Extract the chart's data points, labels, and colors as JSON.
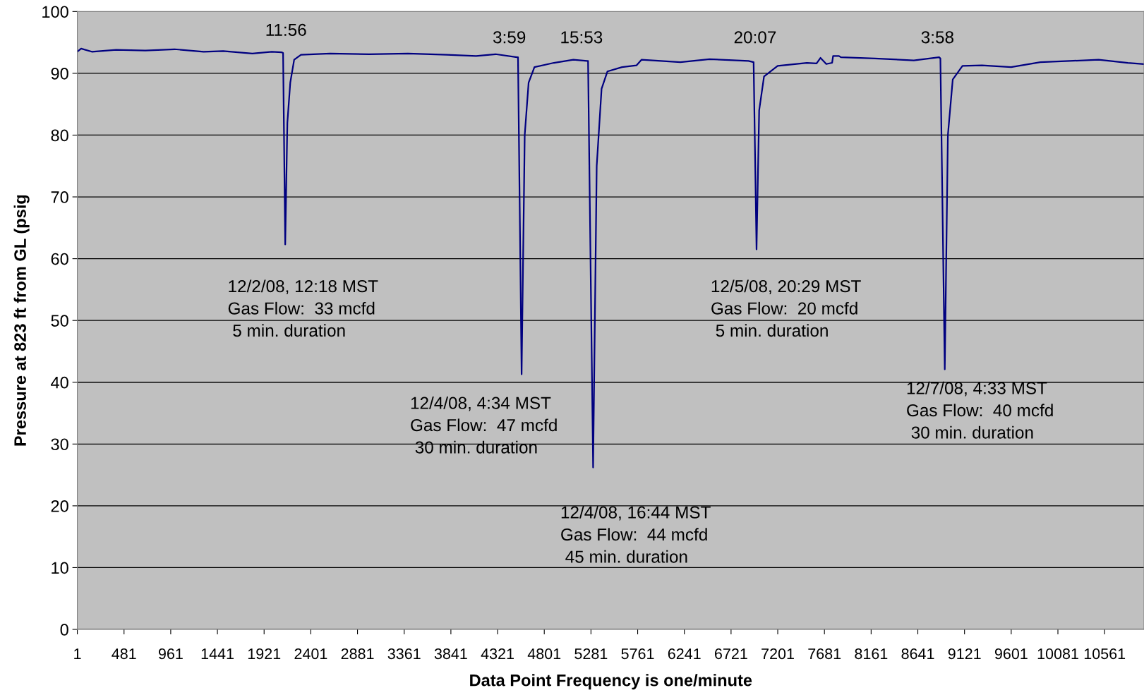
{
  "chart_data": {
    "type": "line",
    "xlabel": "Data Point Frequency is one/minute",
    "ylabel": "Pressure at 823 ft from GL (psig",
    "series": [
      {
        "color": "#000080",
        "x": [
          1,
          40,
          150,
          400,
          700,
          1000,
          1300,
          1500,
          1800,
          2000,
          2100,
          2116,
          2138,
          2160,
          2190,
          2230,
          2300,
          2600,
          3000,
          3400,
          3800,
          4100,
          4300,
          4520,
          4531,
          4568,
          4600,
          4640,
          4700,
          4900,
          5100,
          5240,
          5251,
          5303,
          5340,
          5390,
          5450,
          5600,
          5750,
          5800,
          6200,
          6500,
          6900,
          6953,
          6983,
          7010,
          7060,
          7200,
          7500,
          7600,
          7640,
          7700,
          7760,
          7770,
          7830,
          7850,
          8200,
          8600,
          8860,
          8873,
          8918,
          8950,
          9000,
          9100,
          9300,
          9600,
          9900,
          10200,
          10500,
          10800,
          10960
        ],
        "values": [
          93.5,
          94.0,
          93.5,
          93.8,
          93.7,
          93.9,
          93.5,
          93.6,
          93.2,
          93.5,
          93.4,
          93.3,
          62.3,
          82,
          88.5,
          92.2,
          93.0,
          93.2,
          93.1,
          93.2,
          93.0,
          92.8,
          93.1,
          92.6,
          92.6,
          41.3,
          80,
          88.5,
          91.0,
          91.7,
          92.2,
          92.0,
          92.0,
          26.2,
          75,
          87.5,
          90.3,
          91.0,
          91.3,
          92.2,
          91.8,
          92.3,
          92.0,
          91.8,
          61.5,
          84,
          89.5,
          91.2,
          91.7,
          91.6,
          92.5,
          91.5,
          91.7,
          92.8,
          92.8,
          92.6,
          92.4,
          92.1,
          92.6,
          92.4,
          42.1,
          80,
          89.0,
          91.2,
          91.3,
          91.0,
          91.8,
          92.0,
          92.2,
          91.7,
          91.5
        ]
      }
    ],
    "xlim": [
      1,
      10966
    ],
    "xticks": [
      1,
      481,
      961,
      1441,
      1921,
      2401,
      2881,
      3361,
      3841,
      4321,
      4801,
      5281,
      5761,
      6241,
      6721,
      7201,
      7681,
      8161,
      8641,
      9121,
      9601,
      10081,
      10561
    ],
    "ylim": [
      0,
      100
    ],
    "yticks": [
      0,
      10,
      20,
      30,
      40,
      50,
      60,
      70,
      80,
      90,
      100
    ],
    "grid": "y",
    "annotations": [
      "11:56",
      "3:59",
      "15:53",
      "20:07",
      "3:58",
      "12/2/08, 12:18 MST\nGas Flow:  33 mcfd\n 5 min. duration",
      "12/4/08, 4:34 MST\nGas Flow:  47 mcfd\n 30 min. duration",
      "12/4/08, 16:44 MST\nGas Flow:  44 mcfd\n 45 min. duration",
      "12/5/08, 20:29 MST\nGas Flow:  20 mcfd\n 5 min. duration",
      "12/7/08, 4:33 MST\nGas Flow:  40 mcfd\n 30 min. duration"
    ]
  }
}
